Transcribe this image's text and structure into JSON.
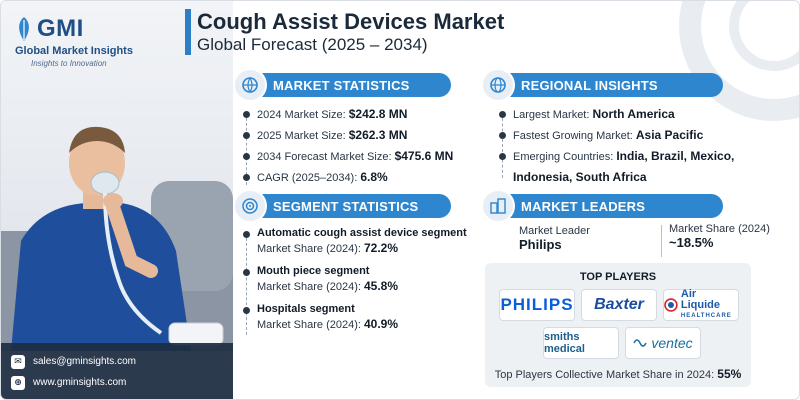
{
  "brand": {
    "name": "GMI",
    "full_name": "Global Market Insights",
    "tagline": "Insights to Innovation"
  },
  "header": {
    "title": "Cough Assist Devices Market",
    "subtitle": "Global Forecast (2025 – 2034)"
  },
  "market_statistics": {
    "heading": "MARKET STATISTICS",
    "items": [
      {
        "label": "2024 Market Size: ",
        "value": "$242.8 MN"
      },
      {
        "label": "2025 Market Size: ",
        "value": "$262.3 MN"
      },
      {
        "label": "2034 Forecast Market Size: ",
        "value": "$475.6 MN"
      },
      {
        "label": "CAGR (2025–2034): ",
        "value": "6.8%"
      }
    ]
  },
  "regional_insights": {
    "heading": "REGIONAL INSIGHTS",
    "items": [
      {
        "label": "Largest Market: ",
        "value": "North America"
      },
      {
        "label": "Fastest Growing Market: ",
        "value": "Asia Pacific"
      },
      {
        "label": "Emerging Countries: ",
        "value": "India, Brazil, Mexico,",
        "value2": "Indonesia, South Africa"
      }
    ]
  },
  "segment_statistics": {
    "heading": "SEGMENT STATISTICS",
    "items": [
      {
        "title": "Automatic cough assist device segment",
        "label": "Market Share (2024): ",
        "value": "72.2%"
      },
      {
        "title": "Mouth piece segment",
        "label": "Market Share (2024): ",
        "value": "45.8%"
      },
      {
        "title": "Hospitals segment",
        "label": "Market Share (2024): ",
        "value": "40.9%"
      }
    ]
  },
  "market_leaders": {
    "heading": "MARKET LEADERS",
    "leader_label": "Market Leader",
    "leader_value": "Philips",
    "share_label": "Market Share (2024)",
    "share_value": "~18.5%"
  },
  "top_players": {
    "heading": "TOP PLAYERS",
    "logos": {
      "philips": "PHILIPS",
      "baxter": "Baxter",
      "air_liquide": "Air Liquide",
      "air_liquide_sub": "HEALTHCARE",
      "smiths": "smiths medical",
      "ventec": "ventec"
    },
    "footer_label": "Top Players Collective Market Share in 2024: ",
    "footer_value": "55%"
  },
  "contact": {
    "email": "sales@gminsights.com",
    "website": "www.gminsights.com"
  },
  "icons": {
    "market_statistics": "globe-chart-icon",
    "regional_insights": "globe-icon",
    "segment_statistics": "target-icon",
    "market_leaders": "buildings-icon",
    "email": "envelope-icon",
    "website": "web-icon"
  },
  "colors": {
    "accent": "#2e86cf",
    "title_bar": "#2c7fc4",
    "brand": "#1f4f86"
  }
}
